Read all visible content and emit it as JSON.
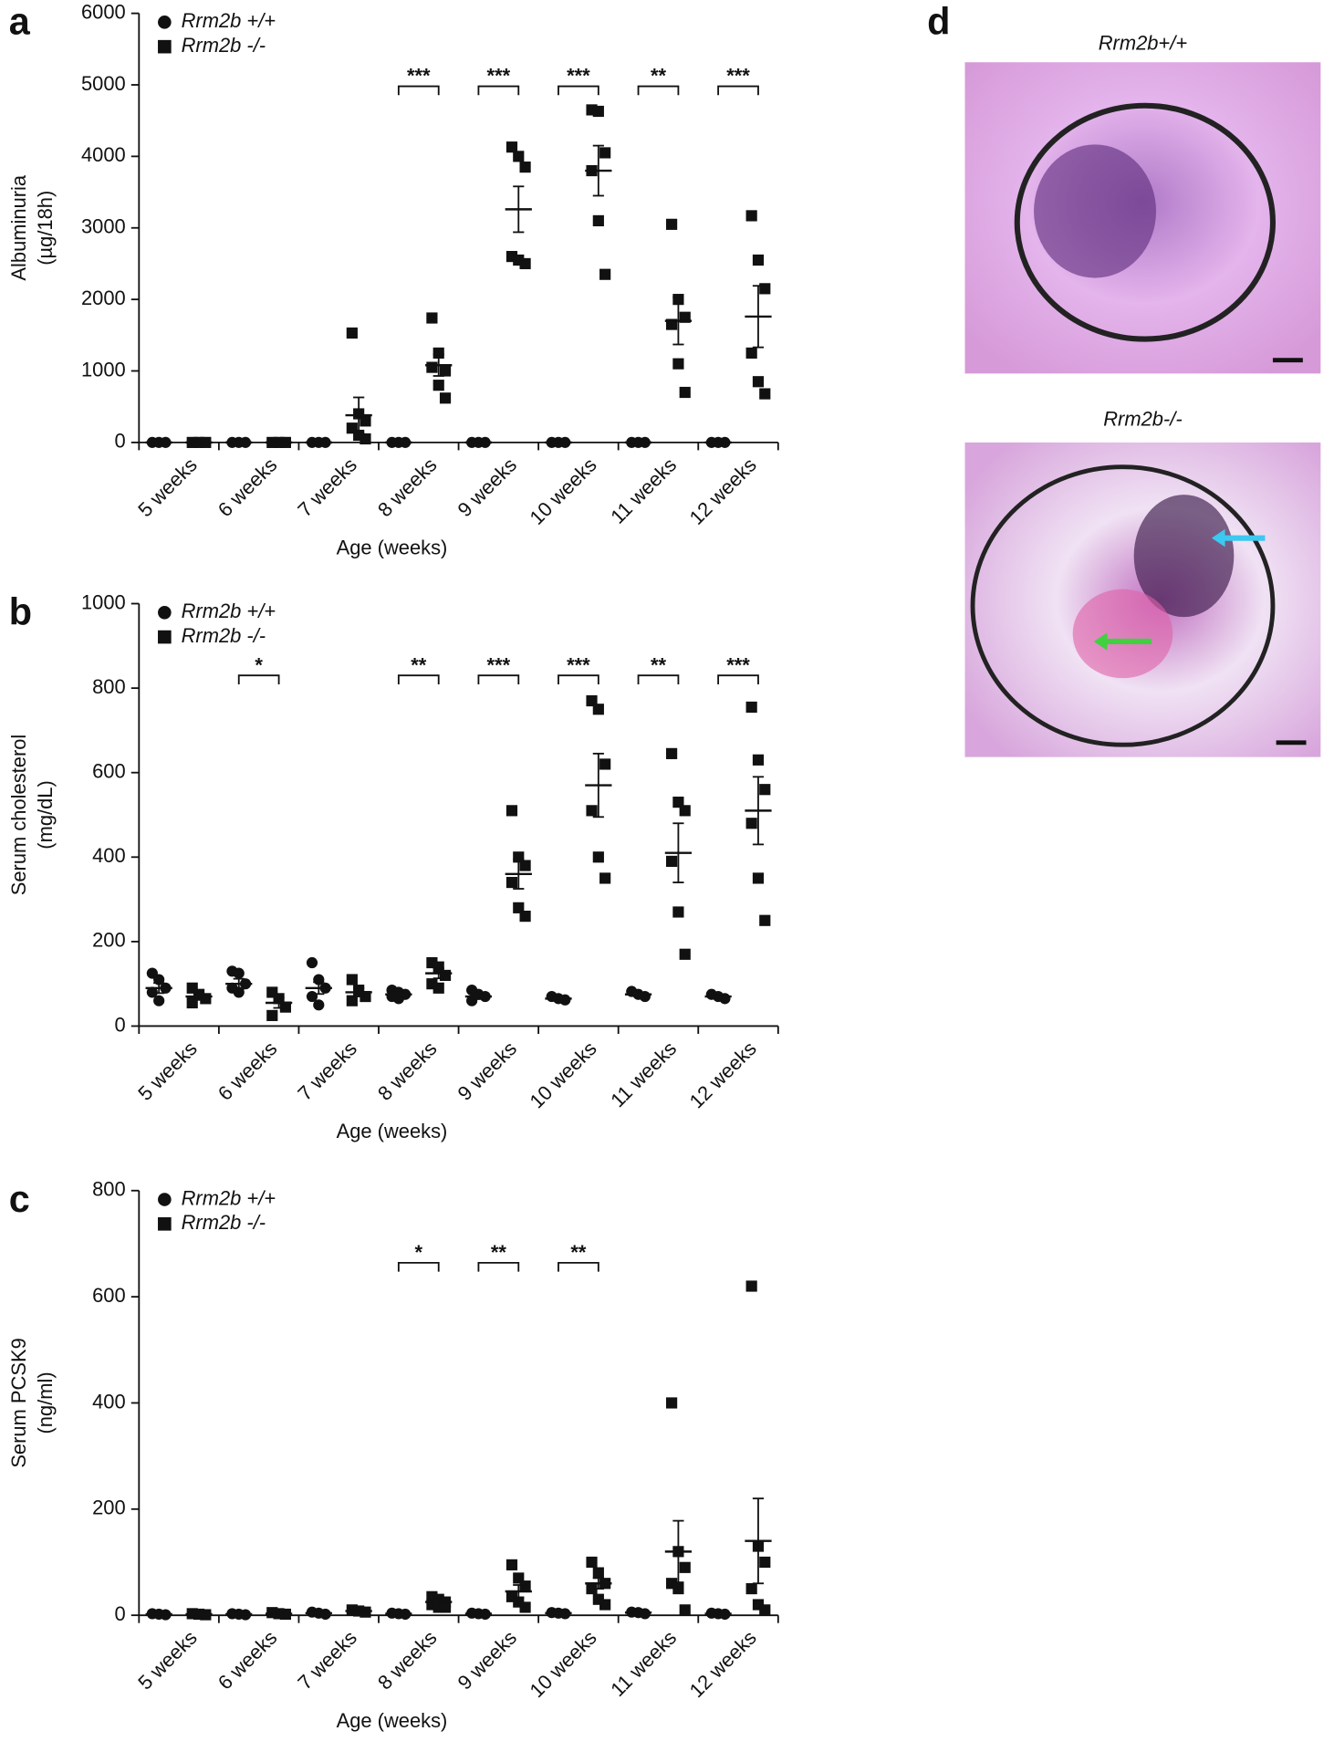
{
  "chart_data": [
    {
      "type": "dot",
      "label": "a",
      "y_label": [
        "Albuminuria",
        "(µg/18h)"
      ],
      "x_label": "Age (weeks)",
      "categories": [
        "5 weeks",
        "6 weeks",
        "7 weeks",
        "8 weeks",
        "9 weeks",
        "10 weeks",
        "11 weeks",
        "12 weeks"
      ],
      "ylim": [
        0,
        6000
      ],
      "yticks": [
        0,
        1000,
        2000,
        3000,
        4000,
        5000,
        6000
      ],
      "series": [
        {
          "name": "Rrm2b +/+",
          "marker": "circle",
          "values": [
            0,
            0,
            0,
            0,
            0,
            0,
            0,
            0
          ],
          "errors": [
            0,
            0,
            0,
            0,
            0,
            0,
            0,
            0
          ],
          "points": [
            [
              0,
              0,
              0
            ],
            [
              0,
              0,
              0
            ],
            [
              0,
              0,
              0
            ],
            [
              0,
              0,
              0
            ],
            [
              0,
              0,
              0
            ],
            [
              0,
              0,
              0
            ],
            [
              0,
              0,
              0
            ],
            [
              0,
              0,
              0
            ]
          ]
        },
        {
          "name": "Rrm2b -/-",
          "marker": "square",
          "values": [
            0,
            0,
            380,
            1080,
            3260,
            3800,
            1700,
            1760
          ],
          "errors": [
            0,
            0,
            250,
            150,
            320,
            350,
            330,
            430
          ],
          "points": [
            [
              0,
              0,
              0
            ],
            [
              0,
              0,
              0
            ],
            [
              1530,
              400,
              300,
              200,
              100,
              50
            ],
            [
              1740,
              1250,
              1000,
              1050,
              800,
              620
            ],
            [
              4130,
              4000,
              3850,
              2600,
              2550,
              2500
            ],
            [
              4650,
              4630,
              4050,
              3800,
              3100,
              2350
            ],
            [
              3050,
              2000,
              1750,
              1650,
              1100,
              700
            ],
            [
              3170,
              2550,
              2150,
              1250,
              850,
              680
            ]
          ]
        }
      ],
      "significance": [
        {
          "category": 3,
          "label": "***"
        },
        {
          "category": 4,
          "label": "***"
        },
        {
          "category": 5,
          "label": "***"
        },
        {
          "category": 6,
          "label": "**"
        },
        {
          "category": 7,
          "label": "***"
        }
      ]
    },
    {
      "type": "dot",
      "label": "b",
      "y_label": [
        "Serum cholesterol",
        "(mg/dL)"
      ],
      "x_label": "Age (weeks)",
      "categories": [
        "5 weeks",
        "6 weeks",
        "7 weeks",
        "8 weeks",
        "9 weeks",
        "10 weeks",
        "11 weeks",
        "12 weeks"
      ],
      "ylim": [
        0,
        1000
      ],
      "yticks": [
        0,
        200,
        400,
        600,
        800,
        1000
      ],
      "series": [
        {
          "name": "Rrm2b +/+",
          "marker": "circle",
          "values": [
            90,
            100,
            90,
            75,
            70,
            65,
            75,
            70
          ],
          "errors": [
            12,
            12,
            14,
            5,
            6,
            3,
            4,
            3
          ],
          "points": [
            [
              125,
              110,
              90,
              80,
              60
            ],
            [
              130,
              125,
              100,
              90,
              80
            ],
            [
              150,
              110,
              90,
              70,
              50
            ],
            [
              85,
              80,
              75,
              70,
              65
            ],
            [
              85,
              75,
              70,
              60
            ],
            [
              70,
              65,
              62
            ],
            [
              82,
              75,
              70
            ],
            [
              75,
              70,
              65
            ]
          ]
        },
        {
          "name": "Rrm2b -/-",
          "marker": "square",
          "values": [
            70,
            55,
            80,
            125,
            360,
            570,
            410,
            510
          ],
          "errors": [
            8,
            12,
            10,
            12,
            35,
            75,
            70,
            80
          ],
          "points": [
            [
              90,
              75,
              65,
              55
            ],
            [
              80,
              65,
              45,
              25
            ],
            [
              110,
              85,
              70,
              60
            ],
            [
              150,
              140,
              120,
              100,
              90
            ],
            [
              510,
              400,
              380,
              340,
              280,
              260
            ],
            [
              770,
              750,
              620,
              510,
              400,
              350
            ],
            [
              645,
              530,
              510,
              390,
              270,
              170
            ],
            [
              755,
              630,
              560,
              480,
              350,
              250
            ]
          ]
        }
      ],
      "significance": [
        {
          "category": 1,
          "label": "*"
        },
        {
          "category": 3,
          "label": "**"
        },
        {
          "category": 4,
          "label": "***"
        },
        {
          "category": 5,
          "label": "***"
        },
        {
          "category": 6,
          "label": "**"
        },
        {
          "category": 7,
          "label": "***"
        }
      ]
    },
    {
      "type": "dot",
      "label": "c",
      "y_label": [
        "Serum PCSK9",
        "(ng/ml)"
      ],
      "x_label": "Age (weeks)",
      "categories": [
        "5 weeks",
        "6 weeks",
        "7 weeks",
        "8 weeks",
        "9 weeks",
        "10 weeks",
        "11 weeks",
        "12 weeks"
      ],
      "ylim": [
        0,
        800
      ],
      "yticks": [
        0,
        200,
        400,
        600,
        800
      ],
      "series": [
        {
          "name": "Rrm2b +/+",
          "marker": "circle",
          "values": [
            2,
            2,
            4,
            3,
            3,
            4,
            5,
            3
          ],
          "errors": [
            1,
            1,
            1,
            1,
            1,
            1,
            1,
            1
          ],
          "points": [
            [
              3,
              2,
              1
            ],
            [
              3,
              2,
              1
            ],
            [
              6,
              4,
              2
            ],
            [
              4,
              3,
              2
            ],
            [
              4,
              3,
              2
            ],
            [
              5,
              4,
              3
            ],
            [
              6,
              5,
              3
            ],
            [
              4,
              3,
              2
            ]
          ]
        },
        {
          "name": "Rrm2b -/-",
          "marker": "square",
          "values": [
            2,
            3,
            8,
            25,
            45,
            60,
            120,
            140
          ],
          "errors": [
            1,
            1,
            2,
            8,
            12,
            10,
            58,
            80
          ],
          "points": [
            [
              3,
              2,
              1
            ],
            [
              5,
              3,
              2
            ],
            [
              10,
              8,
              6
            ],
            [
              35,
              30,
              25,
              20,
              15,
              15
            ],
            [
              95,
              70,
              55,
              35,
              25,
              15
            ],
            [
              100,
              80,
              60,
              50,
              30,
              20
            ],
            [
              400,
              120,
              90,
              60,
              50,
              10
            ],
            [
              620,
              130,
              100,
              50,
              20,
              10
            ]
          ]
        }
      ],
      "significance": [
        {
          "category": 3,
          "label": "*"
        },
        {
          "category": 4,
          "label": "**"
        },
        {
          "category": 5,
          "label": "**"
        }
      ]
    }
  ],
  "images": {
    "label": "d",
    "titles": [
      "Rrm2b+/+",
      "Rrm2b-/-"
    ]
  }
}
